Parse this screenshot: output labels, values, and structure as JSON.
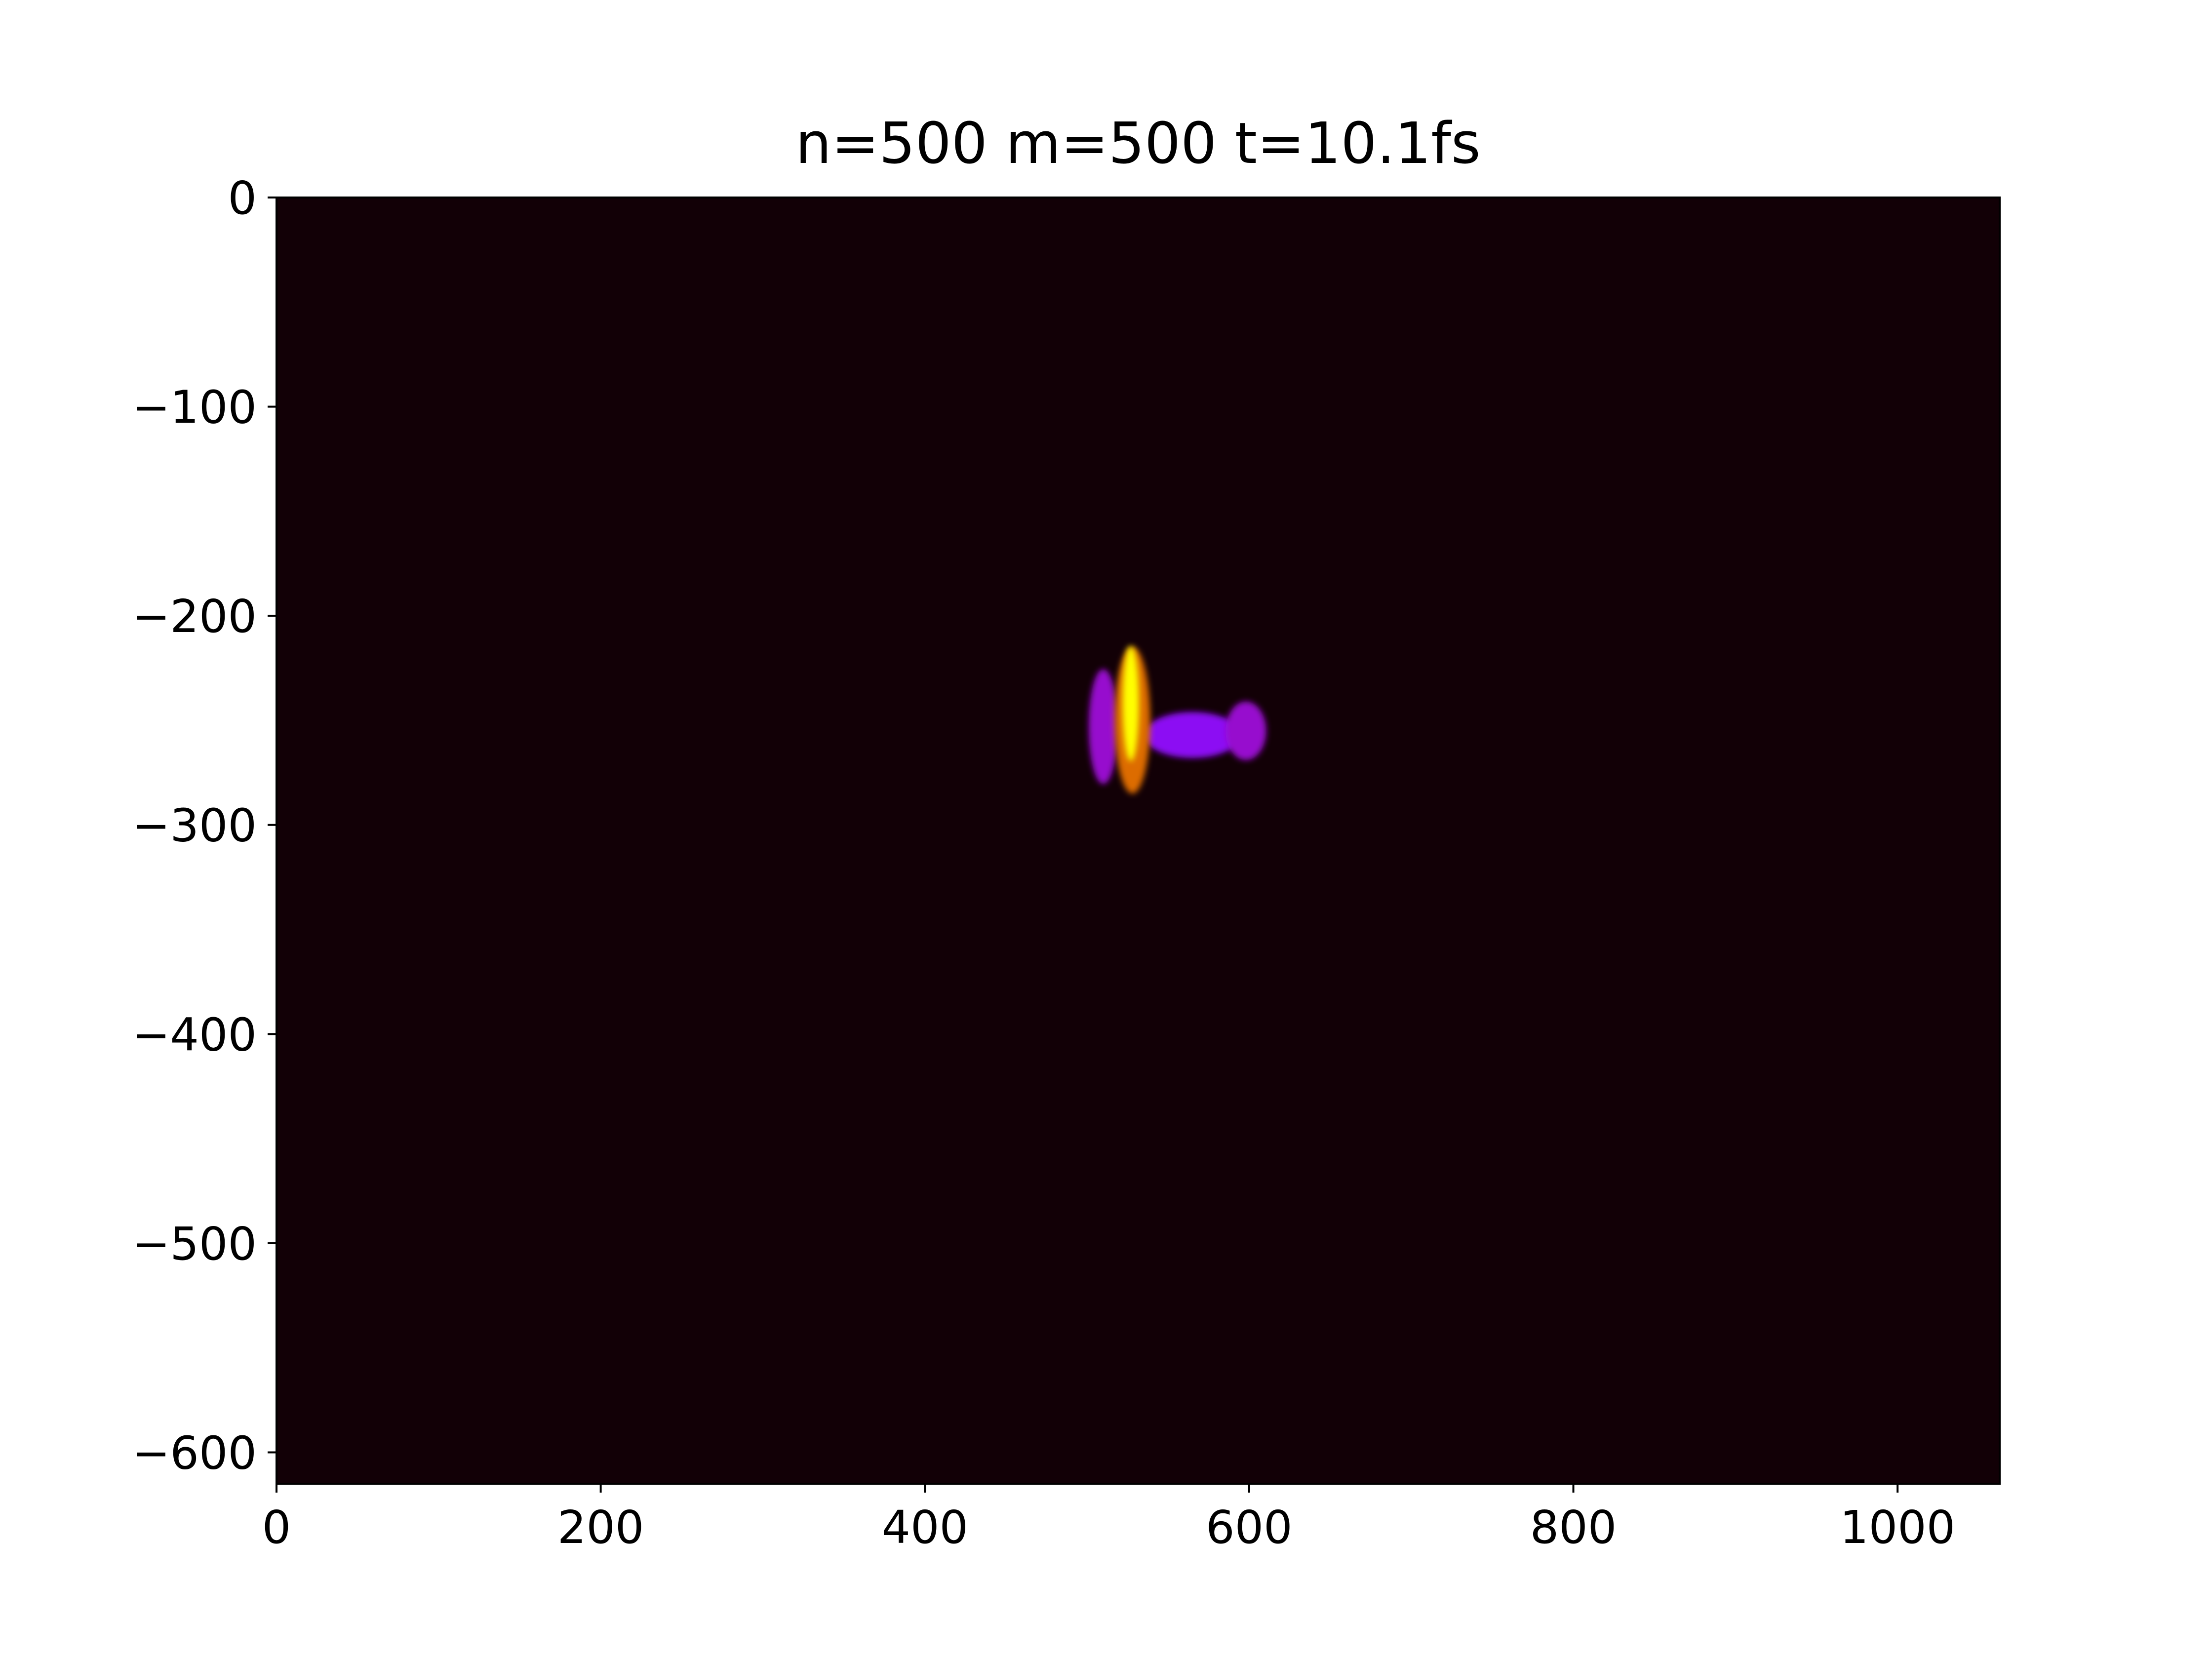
{
  "chart_data": {
    "type": "heatmap",
    "title": "n=500 m=500 t=10.1fs",
    "xlabel": "",
    "ylabel": "",
    "xlim": [
      0,
      1063
    ],
    "ylim": [
      -615,
      0
    ],
    "x_ticks": [
      0,
      200,
      400,
      600,
      800,
      1000
    ],
    "y_ticks": [
      0,
      -100,
      -200,
      -300,
      -400,
      -500,
      -600
    ],
    "x_tick_labels": [
      "0",
      "200",
      "400",
      "600",
      "800",
      "1000"
    ],
    "y_tick_labels": [
      "0",
      "−100",
      "−200",
      "−300",
      "−400",
      "−500",
      "−600"
    ],
    "colormap": "gnuplot",
    "background_color": "#120006",
    "grid": false,
    "legend": "none",
    "features": [
      {
        "description": "peak",
        "x": 527,
        "y": -242,
        "width": 10,
        "height": 55,
        "intensity": 1.0
      },
      {
        "description": "core",
        "x": 528,
        "y": -250,
        "width": 22,
        "height": 70,
        "intensity": 0.75
      },
      {
        "description": "left streak",
        "x": 510,
        "y": -253,
        "width": 18,
        "height": 55,
        "intensity": 0.35
      },
      {
        "description": "tail",
        "x": 565,
        "y": -257,
        "width": 60,
        "height": 22,
        "intensity": 0.3
      },
      {
        "description": "right blob",
        "x": 598,
        "y": -255,
        "width": 25,
        "height": 28,
        "intensity": 0.35
      }
    ]
  }
}
